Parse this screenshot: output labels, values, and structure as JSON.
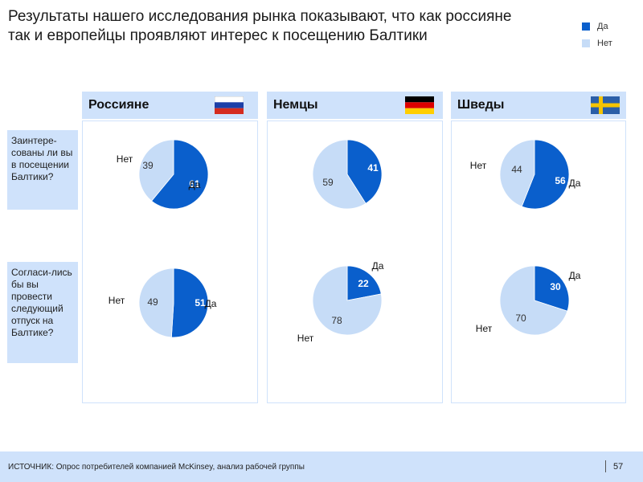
{
  "title": "Результаты нашего исследования рынка показывают, что как россияне так и европейцы проявляют интерес к посещению Балтики",
  "legend": {
    "yes": "Да",
    "no": "Нет"
  },
  "colors": {
    "yes": "#0a5fcc",
    "no": "#c6dcf7",
    "panel": "#cfe2fb"
  },
  "questions": [
    "Заинтере-сованы ли вы в посещении Балтики?",
    "Согласи-лись бы вы провести следующий отпуск на Балтике?"
  ],
  "columns": [
    {
      "header": "Россияне",
      "flag": "russia-flag-icon"
    },
    {
      "header": "Немцы",
      "flag": "germany-flag-icon"
    },
    {
      "header": "Шведы",
      "flag": "sweden-flag-icon"
    }
  ],
  "chart_data": [
    {
      "type": "pie",
      "group": "Россияне",
      "question": "Заинтере-сованы ли вы в посещении Балтики?",
      "labels": [
        "Да",
        "Нет"
      ],
      "values": [
        61,
        39
      ]
    },
    {
      "type": "pie",
      "group": "Немцы",
      "question": "Заинтере-сованы ли вы в посещении Балтики?",
      "labels": [
        "",
        ""
      ],
      "values": [
        41,
        59
      ]
    },
    {
      "type": "pie",
      "group": "Шведы",
      "question": "Заинтере-сованы ли вы в посещении Балтики?",
      "labels": [
        "Да",
        "Нет"
      ],
      "values": [
        56,
        44
      ]
    },
    {
      "type": "pie",
      "group": "Россияне",
      "question": "Согласи-лись бы вы провести следующий отпуск на Балтике?",
      "labels": [
        "Да",
        "Нет"
      ],
      "values": [
        51,
        49
      ]
    },
    {
      "type": "pie",
      "group": "Немцы",
      "question": "Согласи-лись бы вы провести следующий отпуск на Балтике?",
      "labels": [
        "Да",
        "Нет"
      ],
      "values": [
        22,
        78
      ]
    },
    {
      "type": "pie",
      "group": "Шведы",
      "question": "Согласи-лись бы вы провести следующий отпуск на Балтике?",
      "labels": [
        "Да",
        "Нет"
      ],
      "values": [
        30,
        70
      ]
    }
  ],
  "footer": {
    "source": "ИСТОЧНИК:  Опрос  потребителей   компанией  McKinsey, анализ  рабочей  группы",
    "page": "57"
  }
}
